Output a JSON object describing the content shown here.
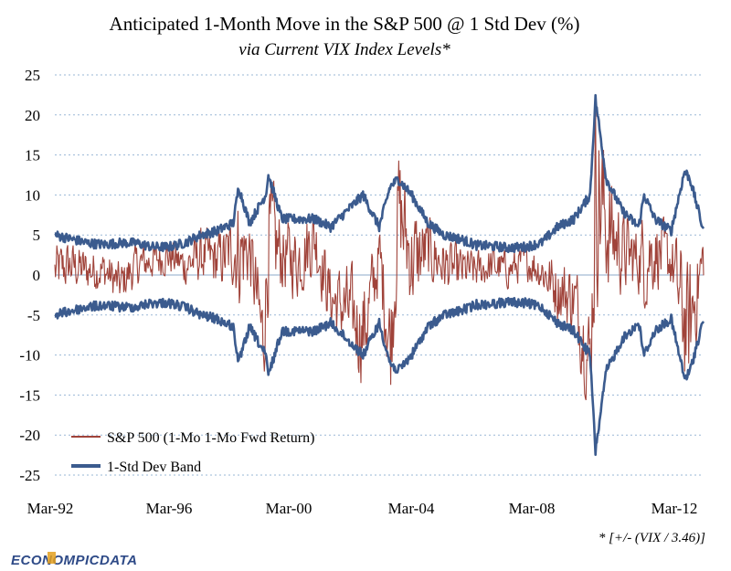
{
  "chart_data": {
    "type": "line",
    "title": "Anticipated 1-Month Move in the S&P 500 @ 1 Std Dev  (%)",
    "subtitle": "via Current VIX Index Levels*",
    "footnote": "* [+/- (VIX / 3.46)]",
    "logo_text": "ECONOMPICDATA",
    "ylim": [
      -25,
      25
    ],
    "y_ticks": [
      "25",
      "20",
      "15",
      "10",
      "5",
      "0",
      "-5",
      "-10",
      "-15",
      "-20",
      "-25"
    ],
    "x_ticks": [
      "Mar-92",
      "Mar-96",
      "Mar-00",
      "Mar-04",
      "Mar-08",
      "Mar-12"
    ],
    "x_range": [
      "1992-03",
      "2012-03"
    ],
    "grid": true,
    "legend_position": "bottom-left",
    "series": [
      {
        "name": "S&P 500 (1-Mo 1-Mo Fwd Return)",
        "color": "#A0433A",
        "style": "volatile-return",
        "x": [
          "1992-03",
          "1992-09",
          "1993-03",
          "1993-09",
          "1994-03",
          "1994-09",
          "1995-03",
          "1995-09",
          "1996-03",
          "1996-09",
          "1997-03",
          "1997-09",
          "1998-03",
          "1998-08",
          "1998-10",
          "1999-03",
          "1999-09",
          "2000-03",
          "2000-09",
          "2001-03",
          "2001-09",
          "2002-03",
          "2002-07",
          "2002-10",
          "2003-03",
          "2003-09",
          "2004-03",
          "2004-09",
          "2005-03",
          "2005-09",
          "2006-03",
          "2006-09",
          "2007-03",
          "2007-09",
          "2008-03",
          "2008-09",
          "2008-11",
          "2009-03",
          "2009-09",
          "2010-03",
          "2010-09",
          "2011-03",
          "2011-09",
          "2012-03"
        ],
        "values": [
          1,
          2,
          1,
          1,
          -2,
          2,
          3,
          4,
          2,
          4,
          3,
          5,
          5,
          -14,
          8,
          4,
          3,
          8,
          -5,
          -7,
          -12,
          4,
          -15,
          14,
          3,
          5,
          2,
          1,
          1,
          2,
          1,
          3,
          1,
          -3,
          -5,
          -18,
          20,
          10,
          5,
          3,
          5,
          3,
          -12,
          4
        ]
      },
      {
        "name": "1-Std Dev Band",
        "color": "#3B5B8E",
        "style": "symmetric-band",
        "x": [
          "1992-03",
          "1992-09",
          "1993-03",
          "1993-09",
          "1994-03",
          "1994-09",
          "1995-03",
          "1995-09",
          "1996-03",
          "1996-09",
          "1997-03",
          "1997-09",
          "1997-11",
          "1998-03",
          "1998-09",
          "1998-10",
          "1999-03",
          "1999-09",
          "2000-03",
          "2000-09",
          "2001-03",
          "2001-09",
          "2002-03",
          "2002-07",
          "2002-10",
          "2003-03",
          "2003-09",
          "2004-03",
          "2004-09",
          "2005-03",
          "2005-09",
          "2006-03",
          "2006-09",
          "2007-03",
          "2007-09",
          "2008-03",
          "2008-09",
          "2008-11",
          "2009-03",
          "2009-09",
          "2010-03",
          "2010-05",
          "2010-09",
          "2011-03",
          "2011-08",
          "2011-10",
          "2012-03"
        ],
        "values": [
          5,
          4.5,
          4,
          3.8,
          4,
          4,
          3.5,
          3.5,
          4,
          5,
          5.5,
          6.5,
          11,
          6.5,
          10,
          12.5,
          7,
          7,
          7,
          6,
          8,
          10,
          6,
          11,
          12,
          10,
          6.5,
          5,
          4.5,
          3.7,
          3.6,
          3.4,
          3.5,
          4,
          6,
          7,
          10,
          22,
          12,
          8,
          6,
          10,
          7,
          5.5,
          13,
          12,
          5.5
        ]
      }
    ]
  }
}
